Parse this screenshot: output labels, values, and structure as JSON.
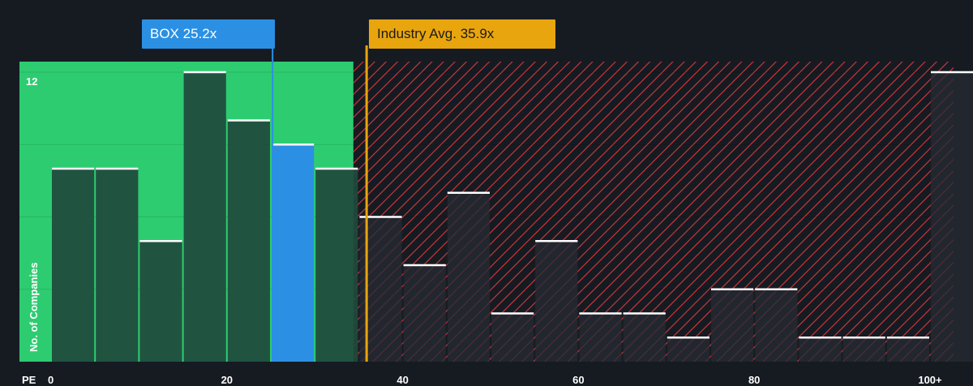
{
  "chart_data": {
    "type": "bar",
    "xlabel": "PE",
    "ylabel": "No. of Companies",
    "xlim": [
      -5,
      102.5
    ],
    "ylim": [
      0,
      12.5
    ],
    "x_ticks": [
      {
        "value": 0,
        "label": "0"
      },
      {
        "value": 20,
        "label": "20"
      },
      {
        "value": 40,
        "label": "40"
      },
      {
        "value": 60,
        "label": "60"
      },
      {
        "value": 80,
        "label": "80"
      },
      {
        "value": 100,
        "label": "100+"
      }
    ],
    "y_ticks": [
      {
        "value": 12,
        "label": "12"
      }
    ],
    "bin_width": 5,
    "bins": [
      {
        "x": 0,
        "count": 8
      },
      {
        "x": 5,
        "count": 8
      },
      {
        "x": 10,
        "count": 5
      },
      {
        "x": 15,
        "count": 12
      },
      {
        "x": 20,
        "count": 10
      },
      {
        "x": 25,
        "count": 9,
        "highlight": true
      },
      {
        "x": 30,
        "count": 8
      },
      {
        "x": 35,
        "count": 6
      },
      {
        "x": 40,
        "count": 4
      },
      {
        "x": 45,
        "count": 7
      },
      {
        "x": 50,
        "count": 2
      },
      {
        "x": 55,
        "count": 5
      },
      {
        "x": 60,
        "count": 2
      },
      {
        "x": 65,
        "count": 2
      },
      {
        "x": 70,
        "count": 1
      },
      {
        "x": 75,
        "count": 3
      },
      {
        "x": 80,
        "count": 3
      },
      {
        "x": 85,
        "count": 1
      },
      {
        "x": 90,
        "count": 1
      },
      {
        "x": 95,
        "count": 1
      },
      {
        "x": 100,
        "count": 12
      }
    ],
    "fair_zone_max": 34.4,
    "markers": {
      "company": {
        "label": "BOX 25.2x",
        "value": 25.2
      },
      "industry": {
        "label": "Industry Avg. 35.9x",
        "value": 35.9
      }
    },
    "colors": {
      "background": "#161b22",
      "fair_zone": "#2ecc71",
      "hatch": "#d9373c",
      "bar_dark": "#1f4a3c",
      "bar_over": "#262a33",
      "highlight": "#2b90e4",
      "company_marker": "#2b90e4",
      "industry_marker": "#e8a50e",
      "bar_top": "#ffffff"
    }
  }
}
